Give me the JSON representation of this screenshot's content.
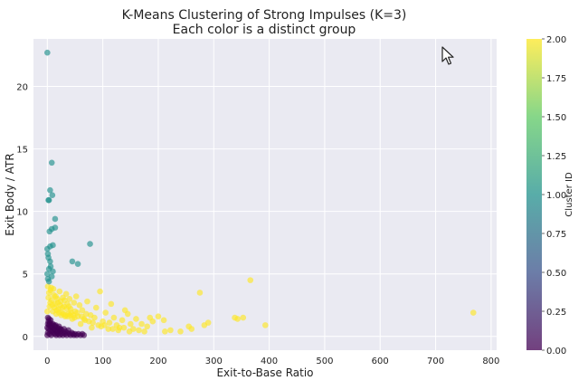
{
  "chart_data": {
    "type": "scatter",
    "title": "K-Means Clustering of Strong Impulses (K=3)",
    "subtitle": "Each color is a distinct group",
    "xlabel": "Exit-to-Base Ratio",
    "ylabel": "Exit Body / ATR",
    "xlim": [
      -25,
      810
    ],
    "ylim": [
      -1.1,
      23.8
    ],
    "x_ticks": [
      "0",
      "100",
      "200",
      "300",
      "400",
      "500",
      "600",
      "700",
      "800"
    ],
    "x_tick_values": [
      0,
      100,
      200,
      300,
      400,
      500,
      600,
      700,
      800
    ],
    "y_ticks": [
      "0",
      "5",
      "10",
      "15",
      "20"
    ],
    "y_tick_values": [
      0,
      5,
      10,
      15,
      20
    ],
    "grid": true,
    "colorbar": {
      "label": "Cluster ID",
      "ticks": [
        "0.00",
        "0.25",
        "0.50",
        "0.75",
        "1.00",
        "1.25",
        "1.50",
        "1.75",
        "2.00"
      ],
      "tick_values": [
        0,
        0.25,
        0.5,
        0.75,
        1.0,
        1.25,
        1.5,
        1.75,
        2.0
      ],
      "range": [
        0,
        2
      ],
      "colormap": [
        "#440154",
        "#3b528b",
        "#21918c",
        "#5ec962",
        "#fde725"
      ]
    },
    "series": [
      {
        "cluster": 0,
        "color": "#440154",
        "points": [
          [
            0,
            0.1
          ],
          [
            1,
            0.3
          ],
          [
            2,
            0.6
          ],
          [
            3,
            0.9
          ],
          [
            2,
            1.2
          ],
          [
            1,
            1.5
          ],
          [
            4,
            0.2
          ],
          [
            5,
            0.5
          ],
          [
            6,
            0.8
          ],
          [
            5,
            1.1
          ],
          [
            7,
            0.1
          ],
          [
            8,
            0.4
          ],
          [
            9,
            0.7
          ],
          [
            10,
            1.0
          ],
          [
            11,
            0.3
          ],
          [
            12,
            0.6
          ],
          [
            13,
            0.2
          ],
          [
            14,
            0.5
          ],
          [
            15,
            0.9
          ],
          [
            16,
            0.1
          ],
          [
            17,
            0.4
          ],
          [
            18,
            0.7
          ],
          [
            19,
            0.2
          ],
          [
            20,
            0.5
          ],
          [
            21,
            0.8
          ],
          [
            22,
            0.1
          ],
          [
            23,
            0.4
          ],
          [
            24,
            0.6
          ],
          [
            25,
            0.2
          ],
          [
            26,
            0.5
          ],
          [
            28,
            0.1
          ],
          [
            29,
            0.3
          ],
          [
            30,
            0.6
          ],
          [
            32,
            0.2
          ],
          [
            33,
            0.4
          ],
          [
            35,
            0.1
          ],
          [
            36,
            0.3
          ],
          [
            38,
            0.5
          ],
          [
            40,
            0.2
          ],
          [
            42,
            0.1
          ],
          [
            44,
            0.3
          ],
          [
            46,
            0.2
          ],
          [
            48,
            0.1
          ],
          [
            50,
            0.2
          ],
          [
            53,
            0.1
          ],
          [
            56,
            0.2
          ],
          [
            60,
            0.1
          ],
          [
            63,
            0.2
          ],
          [
            66,
            0.1
          ],
          [
            0,
            0.7
          ],
          [
            1,
            1.0
          ],
          [
            3,
            1.4
          ],
          [
            4,
            1.0
          ],
          [
            6,
            1.3
          ],
          [
            8,
            0.9
          ],
          [
            10,
            0.5
          ],
          [
            12,
            0.9
          ],
          [
            14,
            0.8
          ],
          [
            18,
            0.3
          ],
          [
            22,
            0.6
          ]
        ]
      },
      {
        "cluster": 1,
        "color": "#21918c",
        "points": [
          [
            0,
            22.7
          ],
          [
            8,
            13.9
          ],
          [
            5,
            11.7
          ],
          [
            9,
            11.3
          ],
          [
            2,
            10.9
          ],
          [
            3,
            10.9
          ],
          [
            14,
            9.4
          ],
          [
            8,
            8.6
          ],
          [
            14,
            8.7
          ],
          [
            4,
            8.4
          ],
          [
            77,
            7.4
          ],
          [
            5,
            7.2
          ],
          [
            0,
            7.0
          ],
          [
            10,
            7.3
          ],
          [
            1,
            6.6
          ],
          [
            2,
            6.3
          ],
          [
            5,
            6.0
          ],
          [
            6,
            5.6
          ],
          [
            3,
            5.4
          ],
          [
            0,
            5.0
          ],
          [
            10,
            5.2
          ],
          [
            8,
            4.8
          ],
          [
            45,
            6.0
          ],
          [
            55,
            5.8
          ],
          [
            1,
            4.6
          ],
          [
            3,
            4.4
          ]
        ]
      },
      {
        "cluster": 2,
        "color": "#fde725",
        "points": [
          [
            768,
            1.9
          ],
          [
            366,
            4.5
          ],
          [
            275,
            3.5
          ],
          [
            353,
            1.5
          ],
          [
            343,
            1.4
          ],
          [
            338,
            1.5
          ],
          [
            393,
            0.9
          ],
          [
            290,
            1.1
          ],
          [
            283,
            0.9
          ],
          [
            255,
            0.8
          ],
          [
            260,
            0.6
          ],
          [
            240,
            0.4
          ],
          [
            222,
            0.5
          ],
          [
            212,
            0.4
          ],
          [
            210,
            1.3
          ],
          [
            200,
            1.6
          ],
          [
            190,
            1.2
          ],
          [
            180,
            0.8
          ],
          [
            170,
            1.0
          ],
          [
            165,
            0.5
          ],
          [
            160,
            1.4
          ],
          [
            150,
            1.0
          ],
          [
            145,
            1.8
          ],
          [
            140,
            2.1
          ],
          [
            135,
            1.3
          ],
          [
            130,
            0.7
          ],
          [
            125,
            0.9
          ],
          [
            120,
            1.5
          ],
          [
            115,
            2.6
          ],
          [
            110,
            0.6
          ],
          [
            105,
            1.9
          ],
          [
            100,
            1.2
          ],
          [
            95,
            3.6
          ],
          [
            92,
            0.9
          ],
          [
            88,
            2.3
          ],
          [
            85,
            1.5
          ],
          [
            80,
            0.7
          ],
          [
            78,
            1.7
          ],
          [
            75,
            1.2
          ],
          [
            72,
            2.8
          ],
          [
            70,
            1.8
          ],
          [
            66,
            1.4
          ],
          [
            63,
            2.1
          ],
          [
            60,
            1.0
          ],
          [
            58,
            2.5
          ],
          [
            55,
            1.6
          ],
          [
            52,
            3.2
          ],
          [
            50,
            2.0
          ],
          [
            48,
            2.7
          ],
          [
            45,
            1.4
          ],
          [
            42,
            2.2
          ],
          [
            40,
            3.0
          ],
          [
            38,
            1.8
          ],
          [
            36,
            2.6
          ],
          [
            34,
            3.4
          ],
          [
            32,
            1.6
          ],
          [
            30,
            2.4
          ],
          [
            28,
            3.1
          ],
          [
            26,
            1.9
          ],
          [
            24,
            2.8
          ],
          [
            22,
            3.6
          ],
          [
            20,
            2.2
          ],
          [
            18,
            3.0
          ],
          [
            16,
            1.8
          ],
          [
            14,
            2.6
          ],
          [
            12,
            3.3
          ],
          [
            10,
            2.0
          ],
          [
            8,
            2.9
          ],
          [
            6,
            3.7
          ],
          [
            4,
            2.4
          ],
          [
            2,
            3.1
          ],
          [
            0,
            2.0
          ],
          [
            1,
            4.0
          ],
          [
            3,
            3.5
          ],
          [
            5,
            2.7
          ],
          [
            7,
            3.9
          ],
          [
            9,
            2.5
          ],
          [
            11,
            3.8
          ],
          [
            13,
            2.3
          ],
          [
            15,
            3.2
          ],
          [
            17,
            2.1
          ],
          [
            19,
            2.7
          ],
          [
            21,
            1.9
          ],
          [
            23,
            2.5
          ],
          [
            25,
            1.7
          ],
          [
            27,
            2.3
          ],
          [
            29,
            1.8
          ],
          [
            31,
            2.9
          ],
          [
            33,
            1.7
          ],
          [
            35,
            2.2
          ],
          [
            37,
            1.6
          ],
          [
            39,
            2.4
          ],
          [
            41,
            1.7
          ],
          [
            43,
            1.9
          ],
          [
            47,
            1.7
          ],
          [
            49,
            1.5
          ],
          [
            54,
            1.9
          ],
          [
            62,
            1.6
          ],
          [
            68,
            1.3
          ],
          [
            82,
            1.1
          ],
          [
            97,
            0.8
          ],
          [
            103,
            0.9
          ],
          [
            112,
            1.1
          ],
          [
            118,
            0.6
          ],
          [
            128,
            0.5
          ],
          [
            138,
            0.7
          ],
          [
            148,
            0.4
          ],
          [
            155,
            0.6
          ],
          [
            175,
            0.4
          ],
          [
            185,
            1.5
          ]
        ]
      }
    ],
    "cursor_icon": "mouse-pointer-icon"
  }
}
